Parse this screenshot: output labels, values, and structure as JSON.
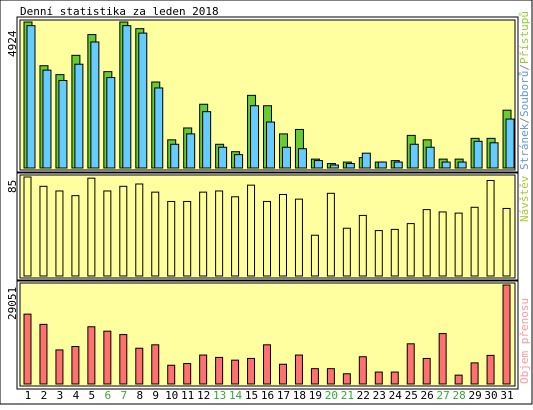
{
  "title": "Denní statistika za leden 2018",
  "colors": {
    "panel_bg": "#ffffa0",
    "border": "#000000",
    "hits": "#66cc33",
    "files": "#66ccff",
    "pages": "#3399cc",
    "visits": "#ffff99",
    "kbytes": "#ff7070",
    "weekend_label": "#33aa33",
    "weekday_label": "#000000"
  },
  "legend": {
    "hits": "Přístupů",
    "separator_1": "/",
    "files": "Souborů",
    "separator_2": "/",
    "pages": "Stránek",
    "visits": "Návštěv",
    "kbytes": "Objem přenosu"
  },
  "panel_labels": {
    "top_max": "4924",
    "middle_max": "85",
    "bottom_max": "29051"
  },
  "chart_data": [
    {
      "type": "bar",
      "name": "hits-files-pages",
      "categories": [
        "1",
        "2",
        "3",
        "4",
        "5",
        "6",
        "7",
        "8",
        "9",
        "10",
        "11",
        "12",
        "13",
        "14",
        "15",
        "16",
        "17",
        "18",
        "19",
        "20",
        "21",
        "22",
        "23",
        "24",
        "25",
        "26",
        "27",
        "28",
        "29",
        "30",
        "31"
      ],
      "weekend_days": [
        "6",
        "7",
        "13",
        "14",
        "20",
        "21",
        "27",
        "28"
      ],
      "ylim": [
        0,
        4924
      ],
      "series": [
        {
          "name": "Přístupů",
          "values": [
            4924,
            3450,
            3150,
            3800,
            4500,
            3250,
            4924,
            4700,
            2900,
            950,
            1350,
            2150,
            800,
            550,
            2450,
            2100,
            1150,
            1300,
            300,
            150,
            200,
            350,
            200,
            250,
            1100,
            950,
            300,
            300,
            1000,
            1000,
            1950
          ]
        },
        {
          "name": "Souborů",
          "values": [
            4800,
            3300,
            2950,
            3500,
            4250,
            3050,
            4800,
            4550,
            2700,
            800,
            1150,
            1900,
            700,
            450,
            2100,
            1550,
            700,
            650,
            250,
            100,
            150,
            500,
            200,
            200,
            800,
            700,
            200,
            200,
            900,
            850,
            1650
          ]
        },
        {
          "name": "Stránek",
          "values": [
            0,
            0,
            0,
            0,
            0,
            0,
            0,
            0,
            0,
            0,
            0,
            0,
            0,
            0,
            0,
            0,
            0,
            0,
            0,
            0,
            0,
            0,
            0,
            0,
            0,
            0,
            0,
            0,
            0,
            0,
            0
          ]
        }
      ]
    },
    {
      "type": "bar",
      "name": "visits",
      "categories": [
        "1",
        "2",
        "3",
        "4",
        "5",
        "6",
        "7",
        "8",
        "9",
        "10",
        "11",
        "12",
        "13",
        "14",
        "15",
        "16",
        "17",
        "18",
        "19",
        "20",
        "21",
        "22",
        "23",
        "24",
        "25",
        "26",
        "27",
        "28",
        "29",
        "30",
        "31"
      ],
      "ylim": [
        0,
        85
      ],
      "series": [
        {
          "name": "Návštěv",
          "values": [
            85,
            77,
            73,
            69,
            84,
            73,
            77,
            79,
            72,
            64,
            64,
            72,
            73,
            68,
            78,
            64,
            70,
            66,
            35,
            71,
            41,
            52,
            39,
            40,
            45,
            57,
            55,
            54,
            59,
            82,
            58
          ]
        }
      ]
    },
    {
      "type": "bar",
      "name": "kbytes",
      "categories": [
        "1",
        "2",
        "3",
        "4",
        "5",
        "6",
        "7",
        "8",
        "9",
        "10",
        "11",
        "12",
        "13",
        "14",
        "15",
        "16",
        "17",
        "18",
        "19",
        "20",
        "21",
        "22",
        "23",
        "24",
        "25",
        "26",
        "27",
        "28",
        "29",
        "30",
        "31"
      ],
      "ylim": [
        0,
        29051
      ],
      "series": [
        {
          "name": "Objem přenosu",
          "values": [
            20500,
            17500,
            10000,
            11000,
            16800,
            15500,
            14500,
            10500,
            11500,
            5500,
            6000,
            8500,
            7800,
            7000,
            7500,
            11500,
            5800,
            8500,
            4500,
            4500,
            3000,
            8000,
            3500,
            3500,
            11800,
            7500,
            14800,
            2600,
            6200,
            8400,
            29051
          ]
        }
      ]
    }
  ]
}
